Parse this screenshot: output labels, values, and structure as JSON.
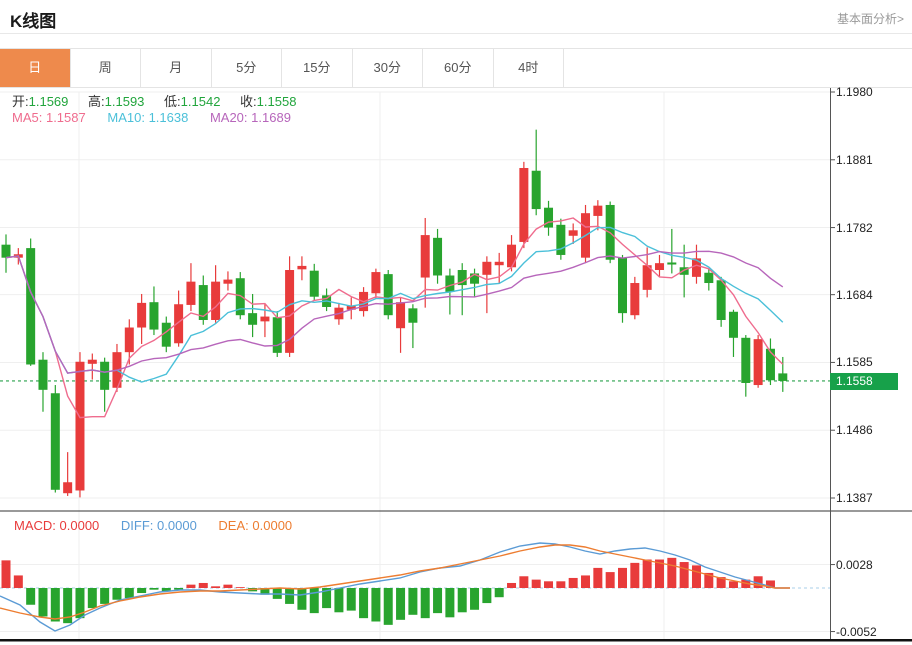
{
  "page": {
    "title": "K线图",
    "analysis_link": "基本面分析>"
  },
  "tabs": [
    {
      "label": "日",
      "active": true
    },
    {
      "label": "周",
      "active": false
    },
    {
      "label": "月",
      "active": false
    },
    {
      "label": "5分",
      "active": false
    },
    {
      "label": "15分",
      "active": false
    },
    {
      "label": "30分",
      "active": false
    },
    {
      "label": "60分",
      "active": false
    },
    {
      "label": "4时",
      "active": false
    }
  ],
  "legend": {
    "open_label": "开:",
    "open": "1.1569",
    "high_label": "高:",
    "high": "1.1593",
    "low_label": "低:",
    "low": "1.1542",
    "close_label": "收:",
    "close": "1.1558",
    "ma5_label": "MA5:",
    "ma5": "1.1587",
    "ma10_label": "MA10:",
    "ma10": "1.1638",
    "ma20_label": "MA20:",
    "ma20": "1.1689"
  },
  "macd_legend": {
    "macd_label": "MACD:",
    "macd": "0.0000",
    "diff_label": "DIFF:",
    "diff": "0.0000",
    "dea_label": "DEA:",
    "dea": "0.0000"
  },
  "current_price": "1.1558",
  "colors": {
    "tab_active_bg": "#ee8a4c",
    "up_red": "#e83b3b",
    "down_green": "#28a42e",
    "ma5": "#ef6c8e",
    "ma10": "#4bc0d9",
    "ma20": "#b766bb",
    "diff_blue": "#5b9bd5",
    "dea_orange": "#ed7d31",
    "price_line": "#2aa24c",
    "badge_bg": "#17a14a",
    "value_green": "#21a53c",
    "grid": "#efefef",
    "axis": "#555555",
    "zero_dash": "#a9cfe8"
  },
  "chart_data": {
    "type": "candlestick",
    "title": "K线图",
    "convention": "red=up, green=down",
    "price_axis": {
      "max": 1.198,
      "min": 1.1387,
      "ticks": [
        {
          "v": 1.198,
          "label": "1.1980"
        },
        {
          "v": 1.1881,
          "label": "1.1881"
        },
        {
          "v": 1.1782,
          "label": "1.1782"
        },
        {
          "v": 1.1684,
          "label": "1.1684"
        },
        {
          "v": 1.1585,
          "label": "1.1585"
        },
        {
          "v": 1.1486,
          "label": "1.1486"
        },
        {
          "v": 1.1387,
          "label": "1.1387"
        }
      ]
    },
    "macd_axis": {
      "ticks": [
        {
          "v": 0.0028,
          "label": "0.0028"
        },
        {
          "v": -0.0052,
          "label": "-0.0052"
        }
      ]
    },
    "current_price": 1.1558,
    "last_ohlc": {
      "open": 1.1569,
      "high": 1.1593,
      "low": 1.1542,
      "close": 1.1558
    },
    "ma_periods": [
      5,
      10,
      20
    ],
    "ma_latest": {
      "ma5": 1.1587,
      "ma10": 1.1638,
      "ma20": 1.1689
    },
    "candles": [
      [
        1.1757,
        1.1772,
        1.1716,
        1.1738
      ],
      [
        1.1738,
        1.1752,
        1.1728,
        1.1743
      ],
      [
        1.1752,
        1.1766,
        1.158,
        1.1582
      ],
      [
        1.1589,
        1.16,
        1.1513,
        1.1545
      ],
      [
        1.154,
        1.1552,
        1.1395,
        1.1399
      ],
      [
        1.1394,
        1.1454,
        1.139,
        1.141
      ],
      [
        1.1398,
        1.16,
        1.1388,
        1.1586
      ],
      [
        1.1583,
        1.1598,
        1.156,
        1.1589
      ],
      [
        1.1586,
        1.1592,
        1.1513,
        1.1545
      ],
      [
        1.1548,
        1.1612,
        1.1542,
        1.16
      ],
      [
        1.16,
        1.1648,
        1.1582,
        1.1636
      ],
      [
        1.1636,
        1.1685,
        1.1612,
        1.1672
      ],
      [
        1.1673,
        1.1696,
        1.1625,
        1.1633
      ],
      [
        1.1643,
        1.1652,
        1.16,
        1.1608
      ],
      [
        1.1613,
        1.169,
        1.1608,
        1.167
      ],
      [
        1.1669,
        1.173,
        1.166,
        1.1703
      ],
      [
        1.1698,
        1.1712,
        1.164,
        1.1647
      ],
      [
        1.1647,
        1.1727,
        1.1643,
        1.1703
      ],
      [
        1.17,
        1.1718,
        1.169,
        1.1706
      ],
      [
        1.1708,
        1.1717,
        1.1648,
        1.1654
      ],
      [
        1.1657,
        1.1685,
        1.1622,
        1.164
      ],
      [
        1.1645,
        1.167,
        1.1622,
        1.1652
      ],
      [
        1.1651,
        1.166,
        1.1593,
        1.1599
      ],
      [
        1.1599,
        1.174,
        1.1593,
        1.172
      ],
      [
        1.1721,
        1.174,
        1.1705,
        1.1726
      ],
      [
        1.1719,
        1.1729,
        1.1675,
        1.1681
      ],
      [
        1.1683,
        1.1693,
        1.166,
        1.1666
      ],
      [
        1.1648,
        1.1672,
        1.164,
        1.1665
      ],
      [
        1.1662,
        1.168,
        1.1648,
        1.1668
      ],
      [
        1.166,
        1.1695,
        1.1652,
        1.1688
      ],
      [
        1.1686,
        1.1722,
        1.1678,
        1.1717
      ],
      [
        1.1714,
        1.172,
        1.1648,
        1.1654
      ],
      [
        1.1635,
        1.168,
        1.1599,
        1.1673
      ],
      [
        1.1664,
        1.167,
        1.1606,
        1.1643
      ],
      [
        1.1709,
        1.1796,
        1.1665,
        1.1771
      ],
      [
        1.1767,
        1.178,
        1.17,
        1.1712
      ],
      [
        1.1712,
        1.1722,
        1.1655,
        1.1688
      ],
      [
        1.172,
        1.173,
        1.1654,
        1.1698
      ],
      [
        1.1715,
        1.1722,
        1.168,
        1.17
      ],
      [
        1.1713,
        1.174,
        1.1657,
        1.1732
      ],
      [
        1.1727,
        1.1745,
        1.17,
        1.1732
      ],
      [
        1.1724,
        1.1771,
        1.1718,
        1.1757
      ],
      [
        1.1761,
        1.1878,
        1.1752,
        1.1869
      ],
      [
        1.1865,
        1.1925,
        1.18,
        1.1809
      ],
      [
        1.1811,
        1.1821,
        1.177,
        1.1782
      ],
      [
        1.1786,
        1.1795,
        1.1735,
        1.1742
      ],
      [
        1.177,
        1.1788,
        1.1758,
        1.1778
      ],
      [
        1.1738,
        1.1815,
        1.173,
        1.1803
      ],
      [
        1.1799,
        1.1822,
        1.1778,
        1.1814
      ],
      [
        1.1815,
        1.182,
        1.173,
        1.1735
      ],
      [
        1.1738,
        1.1742,
        1.1643,
        1.1657
      ],
      [
        1.1654,
        1.171,
        1.1648,
        1.1701
      ],
      [
        1.1691,
        1.1753,
        1.168,
        1.1727
      ],
      [
        1.172,
        1.1742,
        1.171,
        1.173
      ],
      [
        1.1731,
        1.178,
        1.1715,
        1.1728
      ],
      [
        1.1724,
        1.1757,
        1.168,
        1.1713
      ],
      [
        1.171,
        1.1757,
        1.17,
        1.1737
      ],
      [
        1.1716,
        1.1722,
        1.169,
        1.1701
      ],
      [
        1.1705,
        1.171,
        1.1637,
        1.1647
      ],
      [
        1.1659,
        1.1662,
        1.1593,
        1.1621
      ],
      [
        1.1621,
        1.1625,
        1.1535,
        1.1555
      ],
      [
        1.1552,
        1.1625,
        1.1548,
        1.1619
      ],
      [
        1.1605,
        1.162,
        1.1552,
        1.1559
      ],
      [
        1.1569,
        1.1593,
        1.1542,
        1.1558
      ]
    ],
    "macd": {
      "bars": [
        0.0033,
        0.0015,
        -0.002,
        -0.0034,
        -0.004,
        -0.0042,
        -0.0036,
        -0.0024,
        -0.0019,
        -0.0014,
        -0.0012,
        -0.0006,
        -0.0002,
        -0.0004,
        -0.0002,
        0.0004,
        0.0006,
        0.0002,
        0.0004,
        0.0001,
        -0.0004,
        -0.0008,
        -0.0013,
        -0.0019,
        -0.0026,
        -0.003,
        -0.0024,
        -0.0029,
        -0.0027,
        -0.0036,
        -0.004,
        -0.0044,
        -0.0038,
        -0.0032,
        -0.0036,
        -0.003,
        -0.0035,
        -0.0029,
        -0.0026,
        -0.0018,
        -0.0011,
        0.0006,
        0.0014,
        0.001,
        0.0008,
        0.0008,
        0.0012,
        0.0015,
        0.0024,
        0.0019,
        0.0024,
        0.003,
        0.0034,
        0.0034,
        0.0036,
        0.0031,
        0.0027,
        0.0018,
        0.0013,
        0.0008,
        0.001,
        0.0014,
        0.0009,
        0.0
      ],
      "diff": [
        [
          0,
          -0.00096
        ],
        [
          20,
          -0.00203
        ],
        [
          40,
          -0.00406
        ],
        [
          55,
          -0.00513
        ],
        [
          70,
          -0.00442
        ],
        [
          85,
          -0.00322
        ],
        [
          100,
          -0.00239
        ],
        [
          120,
          -0.00143
        ],
        [
          140,
          -0.00096
        ],
        [
          160,
          -0.00048
        ],
        [
          180,
          -0.00024
        ],
        [
          200,
          -0.00024
        ],
        [
          220,
          -0.00048
        ],
        [
          240,
          -0.0006
        ],
        [
          260,
          -0.00072
        ],
        [
          280,
          -0.00072
        ],
        [
          300,
          -0.00084
        ],
        [
          320,
          -0.00048
        ],
        [
          340,
          0.0
        ],
        [
          360,
          0.00048
        ],
        [
          380,
          0.00084
        ],
        [
          400,
          0.00119
        ],
        [
          420,
          0.00191
        ],
        [
          440,
          0.00239
        ],
        [
          460,
          0.00263
        ],
        [
          480,
          0.00334
        ],
        [
          500,
          0.0043
        ],
        [
          520,
          0.00501
        ],
        [
          540,
          0.00537
        ],
        [
          555,
          0.00525
        ],
        [
          570,
          0.0049
        ],
        [
          585,
          0.00442
        ],
        [
          600,
          0.00406
        ],
        [
          615,
          0.00442
        ],
        [
          630,
          0.00466
        ],
        [
          645,
          0.00478
        ],
        [
          660,
          0.00442
        ],
        [
          675,
          0.00394
        ],
        [
          690,
          0.00334
        ],
        [
          705,
          0.00251
        ],
        [
          720,
          0.00191
        ],
        [
          735,
          0.00131
        ],
        [
          750,
          0.00084
        ],
        [
          765,
          0.00036
        ],
        [
          775,
          0.0
        ],
        [
          790,
          0.0
        ]
      ],
      "dea": [
        [
          0,
          -0.00239
        ],
        [
          20,
          -0.00299
        ],
        [
          40,
          -0.00346
        ],
        [
          55,
          -0.0037
        ],
        [
          70,
          -0.00346
        ],
        [
          85,
          -0.00287
        ],
        [
          100,
          -0.00215
        ],
        [
          120,
          -0.00155
        ],
        [
          140,
          -0.00107
        ],
        [
          160,
          -0.00072
        ],
        [
          180,
          -0.00048
        ],
        [
          200,
          -0.00036
        ],
        [
          220,
          -0.00036
        ],
        [
          240,
          -0.00024
        ],
        [
          260,
          -0.00012
        ],
        [
          280,
          0.0
        ],
        [
          300,
          -0.00012
        ],
        [
          320,
          0.00012
        ],
        [
          340,
          0.00048
        ],
        [
          360,
          0.00084
        ],
        [
          380,
          0.00119
        ],
        [
          400,
          0.00155
        ],
        [
          420,
          0.00203
        ],
        [
          440,
          0.00239
        ],
        [
          460,
          0.00287
        ],
        [
          480,
          0.00334
        ],
        [
          500,
          0.00382
        ],
        [
          520,
          0.00442
        ],
        [
          540,
          0.0049
        ],
        [
          555,
          0.00513
        ],
        [
          570,
          0.00513
        ],
        [
          585,
          0.0049
        ],
        [
          600,
          0.00442
        ],
        [
          615,
          0.00406
        ],
        [
          630,
          0.0037
        ],
        [
          645,
          0.00334
        ],
        [
          660,
          0.00299
        ],
        [
          675,
          0.00263
        ],
        [
          690,
          0.00215
        ],
        [
          705,
          0.00167
        ],
        [
          720,
          0.00119
        ],
        [
          735,
          0.00084
        ],
        [
          750,
          0.00048
        ],
        [
          765,
          0.00024
        ],
        [
          775,
          0.0
        ],
        [
          790,
          0.0
        ]
      ]
    },
    "grid": {
      "vlines_x": [
        79,
        380,
        664
      ]
    }
  }
}
